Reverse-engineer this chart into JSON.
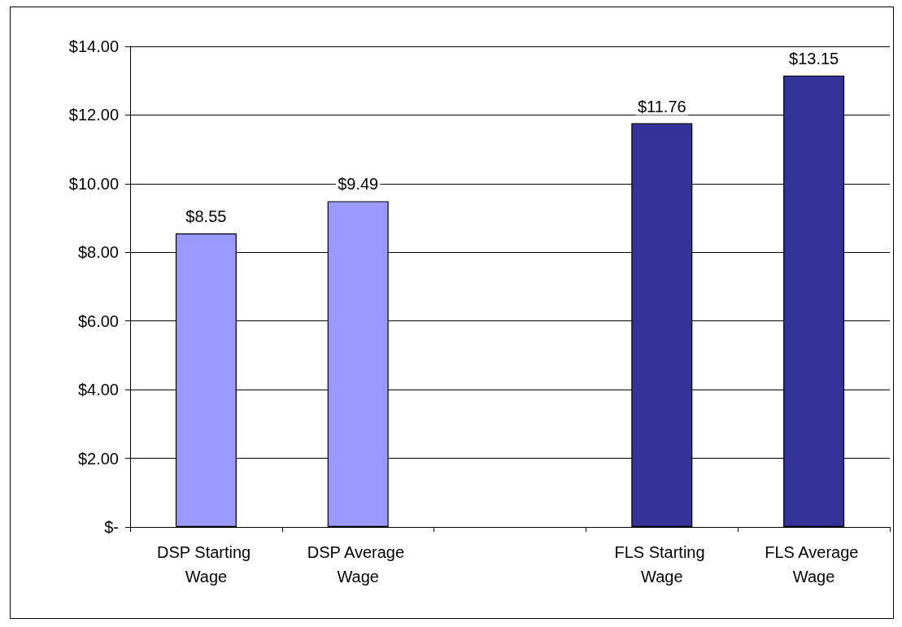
{
  "chart_data": {
    "type": "bar",
    "categories": [
      "DSP Starting Wage",
      "DSP Average Wage",
      null,
      "FLS Starting Wage",
      "FLS Average Wage"
    ],
    "values": [
      8.55,
      9.49,
      null,
      11.76,
      13.15
    ],
    "colors": [
      "#9999ff",
      "#9999ff",
      null,
      "#333399",
      "#333399"
    ],
    "value_labels": [
      "$8.55",
      "$9.49",
      null,
      "$11.76",
      "$13.15"
    ],
    "ylim": [
      0,
      14
    ],
    "yticks": [
      {
        "value": 0,
        "label": "$-"
      },
      {
        "value": 2,
        "label": "$2.00"
      },
      {
        "value": 4,
        "label": "$4.00"
      },
      {
        "value": 6,
        "label": "$6.00"
      },
      {
        "value": 8,
        "label": "$8.00"
      },
      {
        "value": 10,
        "label": "$10.00"
      },
      {
        "value": 12,
        "label": "$12.00"
      },
      {
        "value": 14,
        "label": "$14.00"
      }
    ],
    "grid": "y"
  }
}
